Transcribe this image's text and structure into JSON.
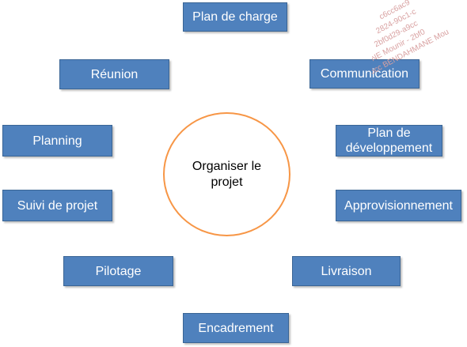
{
  "diagram": {
    "center": {
      "label": "Organiser le projet"
    },
    "nodes": [
      {
        "id": "plan-de-charge",
        "label": "Plan de charge"
      },
      {
        "id": "communication",
        "label": "Communication"
      },
      {
        "id": "plan-de-developpement",
        "label": "Plan de\ndéveloppement"
      },
      {
        "id": "approvisionnement",
        "label": "Approvisionnement"
      },
      {
        "id": "livraison",
        "label": "Livraison"
      },
      {
        "id": "encadrement",
        "label": "Encadrement"
      },
      {
        "id": "pilotage",
        "label": "Pilotage"
      },
      {
        "id": "suivi-de-projet",
        "label": "Suivi de projet"
      },
      {
        "id": "planning",
        "label": "Planning"
      },
      {
        "id": "reunion",
        "label": "Réunion"
      }
    ],
    "watermark": {
      "lines": [
        "c6cc6ac9",
        "2824-90c1-c",
        "2bf0d29-a9cc",
        "NE Mounir - 2bf0",
        "c6cc BENDAHMANE Mou"
      ]
    },
    "colors": {
      "box_fill": "#4f81bd",
      "box_border": "#3a6595",
      "box_text": "#ffffff",
      "circle_border": "#f79646",
      "watermark_text": "#d8a0a0"
    }
  }
}
